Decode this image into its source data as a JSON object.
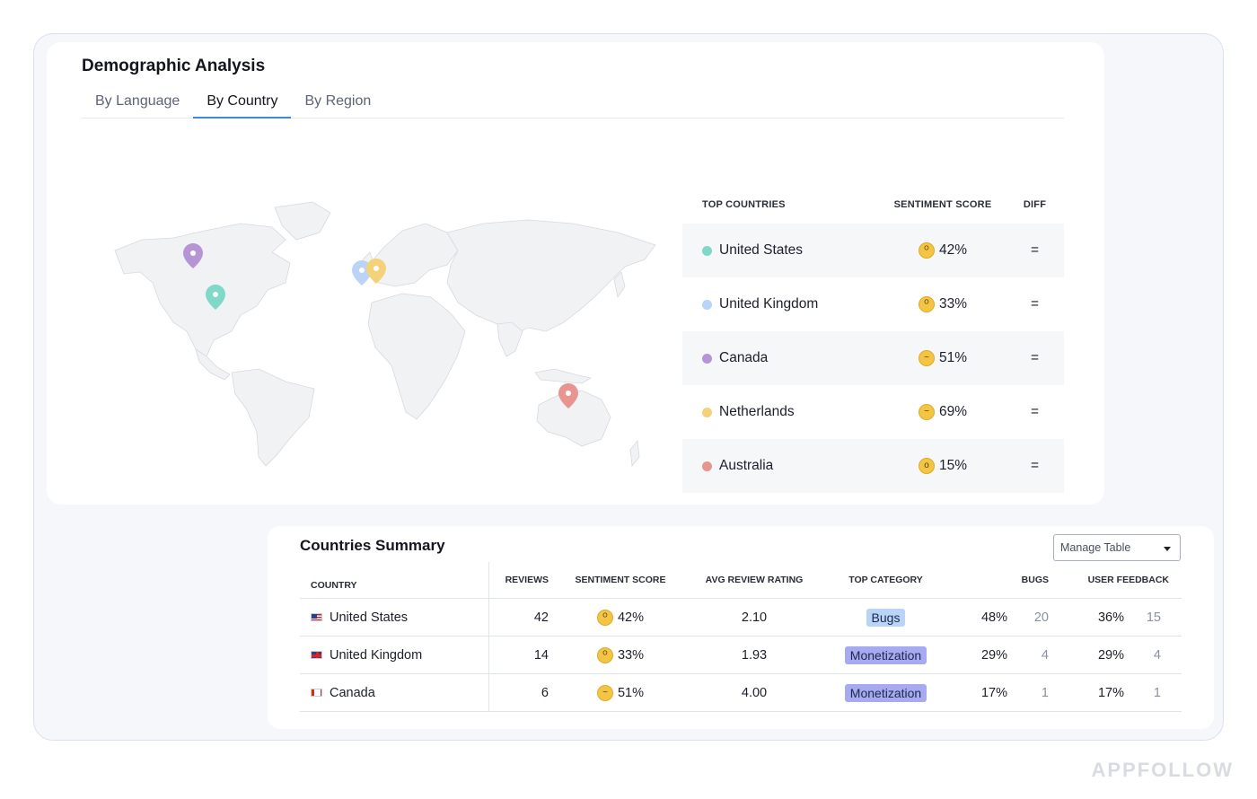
{
  "demographic": {
    "title": "Demographic Analysis",
    "tabs": [
      {
        "label": "By Language",
        "active": false
      },
      {
        "label": "By Country",
        "active": true
      },
      {
        "label": "By Region",
        "active": false
      }
    ]
  },
  "top_countries": {
    "headers": {
      "country": "TOP COUNTRIES",
      "score": "SENTIMENT SCORE",
      "diff": "DIFF"
    },
    "rows": [
      {
        "country": "United States",
        "score": "42%",
        "diff": "=",
        "color": "#7fd8c8",
        "emoji": "scared"
      },
      {
        "country": "United Kingdom",
        "score": "33%",
        "diff": "=",
        "color": "#b9d4f6",
        "emoji": "scared"
      },
      {
        "country": "Canada",
        "score": "51%",
        "diff": "=",
        "color": "#b595d6",
        "emoji": "confused"
      },
      {
        "country": "Netherlands",
        "score": "69%",
        "diff": "=",
        "color": "#f3d27a",
        "emoji": "confused"
      },
      {
        "country": "Australia",
        "score": "15%",
        "diff": "=",
        "color": "#e89591",
        "emoji": "astonished"
      }
    ]
  },
  "map": {
    "pins": [
      {
        "name": "canada-pin",
        "color": "#b595d6"
      },
      {
        "name": "united-states-pin",
        "color": "#7fd8c8"
      },
      {
        "name": "united-kingdom-pin",
        "color": "#b9d4f6"
      },
      {
        "name": "netherlands-pin",
        "color": "#f3d27a"
      },
      {
        "name": "australia-pin",
        "color": "#e89591"
      }
    ]
  },
  "summary": {
    "title": "Countries Summary",
    "manage_label": "Manage Table",
    "headers": {
      "country": "COUNTRY",
      "reviews": "REVIEWS",
      "score": "SENTIMENT SCORE",
      "rating": "AVG REVIEW RATING",
      "category": "TOP CATEGORY",
      "bugs": "BUGS",
      "feedback": "USER FEEDBACK"
    },
    "rows": [
      {
        "country": "United States",
        "flag": "us",
        "reviews": "42",
        "score": "42%",
        "emoji": "scared",
        "rating": "2.10",
        "category": "Bugs",
        "category_color": "#b9d4f6",
        "bugs_pct": "48%",
        "bugs_n": "20",
        "fb_pct": "36%",
        "fb_n": "15"
      },
      {
        "country": "United Kingdom",
        "flag": "uk",
        "reviews": "14",
        "score": "33%",
        "emoji": "scared",
        "rating": "1.93",
        "category": "Monetization",
        "category_color": "#a7aaf0",
        "bugs_pct": "29%",
        "bugs_n": "4",
        "fb_pct": "29%",
        "fb_n": "4"
      },
      {
        "country": "Canada",
        "flag": "ca",
        "reviews": "6",
        "score": "51%",
        "emoji": "confused",
        "rating": "4.00",
        "category": "Monetization",
        "category_color": "#a7aaf0",
        "bugs_pct": "17%",
        "bugs_n": "1",
        "fb_pct": "17%",
        "fb_n": "1"
      }
    ]
  },
  "watermark": "APPFOLLOW"
}
